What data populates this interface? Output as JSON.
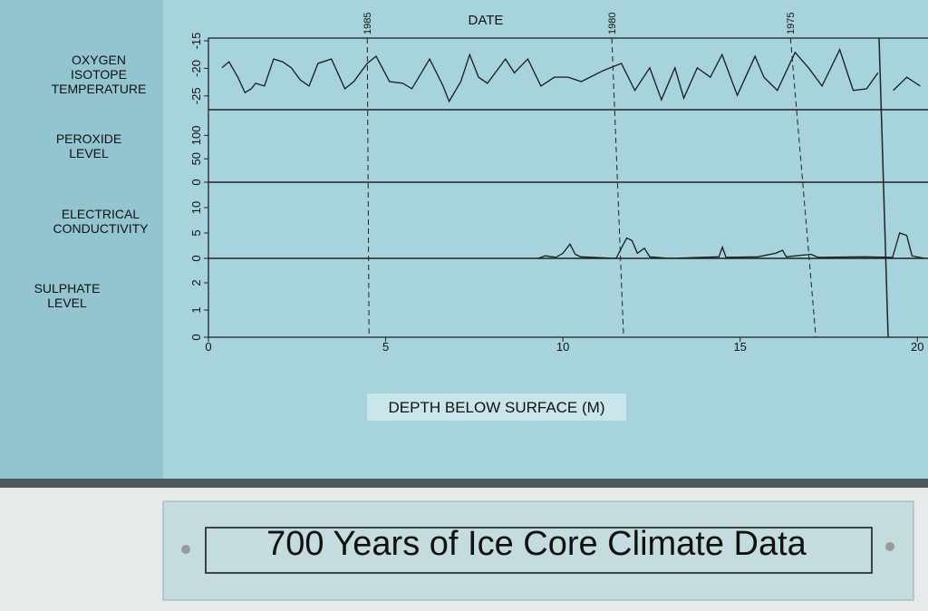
{
  "chart_data": [
    {
      "type": "line",
      "title": "OXYGEN ISOTOPE TEMPERATURE",
      "x2label": "DATE",
      "x2ticks": [
        {
          "value": 4.48,
          "label": "1985"
        },
        {
          "value": 11.38,
          "label": "1980"
        },
        {
          "value": 16.42,
          "label": "1975"
        }
      ],
      "xlim": [
        0,
        20.3
      ],
      "ylim": [
        -27.5,
        -14.5
      ],
      "yticks": [
        -25,
        -20,
        -15
      ],
      "color": "#1a1a1a",
      "x": [
        0.38,
        0.58,
        0.83,
        1.03,
        1.21,
        1.33,
        1.58,
        1.84,
        2.09,
        2.34,
        2.59,
        2.84,
        3.09,
        3.47,
        3.85,
        4.1,
        4.48,
        4.73,
        5.11,
        5.48,
        5.74,
        6.24,
        6.62,
        6.79,
        7.12,
        7.37,
        7.62,
        7.87,
        8.38,
        8.63,
        9.01,
        9.38,
        9.76,
        10.14,
        10.52,
        11.14,
        11.65,
        12.03,
        12.45,
        12.78,
        13.16,
        13.41,
        13.79,
        14.16,
        14.49,
        14.92,
        15.42,
        15.67,
        16.05,
        16.55,
        16.93,
        17.31,
        17.81,
        18.19,
        18.57,
        18.89,
        19.1,
        19.32,
        19.7,
        20.08
      ],
      "values": [
        -19.9,
        -18.8,
        -21.6,
        -24.4,
        -23.7,
        -22.7,
        -23.2,
        -18.3,
        -18.8,
        -19.9,
        -22.1,
        -23.2,
        -19.1,
        -18.3,
        -23.7,
        -22.4,
        -19.1,
        -17.8,
        -22.4,
        -22.7,
        -23.7,
        -18.3,
        -23.2,
        -26.0,
        -22.4,
        -17.5,
        -21.6,
        -22.7,
        -18.3,
        -20.8,
        -18.3,
        -23.2,
        -21.6,
        -21.6,
        -22.4,
        -20.4,
        -19.1,
        -24.0,
        -19.9,
        -25.7,
        -19.9,
        -25.4,
        -19.9,
        -21.6,
        -17.5,
        -24.9,
        -17.8,
        -21.6,
        -24.0,
        -17.1,
        -19.9,
        -23.2,
        -16.6,
        -24.0,
        -23.7,
        -20.8,
        null,
        -24.0,
        -21.6,
        -23.2
      ]
    },
    {
      "type": "line",
      "title": "PEROXIDE LEVEL",
      "xlim": [
        0,
        20.3
      ],
      "ylim": [
        0,
        155
      ],
      "yticks": [
        0,
        50,
        100
      ],
      "color": "#1a1a1a",
      "x": [],
      "values": []
    },
    {
      "type": "line",
      "title": "ELECTRICAL CONDUCTIVITY",
      "xlim": [
        0,
        20.3
      ],
      "ylim": [
        0,
        15
      ],
      "yticks": [
        0,
        5,
        10
      ],
      "color": "#1a1a1a",
      "x": [
        9.3,
        9.5,
        9.8,
        10.0,
        10.2,
        10.35,
        10.5,
        11.5,
        11.8,
        11.95,
        12.1,
        12.3,
        12.45,
        13.0,
        14.4,
        14.5,
        14.6,
        15.5,
        16.0,
        16.2,
        16.3,
        17.0,
        17.2,
        18.5,
        19.3,
        19.5,
        19.7,
        19.85,
        20.2
      ],
      "values": [
        0,
        0.5,
        0.2,
        1,
        2.8,
        0.8,
        0.3,
        0,
        4,
        3.5,
        1,
        2,
        0.3,
        0,
        0.3,
        2.2,
        0.2,
        0.3,
        1,
        1.6,
        0.3,
        0.8,
        0.2,
        0.3,
        0.2,
        5,
        4.5,
        0.5,
        0
      ]
    },
    {
      "type": "line",
      "title": "SULPHATE LEVEL",
      "xlim": [
        0,
        20.3
      ],
      "ylim": [
        0,
        2.9
      ],
      "yticks": [
        0,
        1,
        2
      ],
      "xticks": [
        0,
        5,
        10,
        15,
        20
      ],
      "xlabel": "DEPTH BELOW SURFACE (M)",
      "color": "#1a1a1a",
      "x": [],
      "values": []
    }
  ],
  "plaque": "700 Years of Ice Core Climate Data"
}
